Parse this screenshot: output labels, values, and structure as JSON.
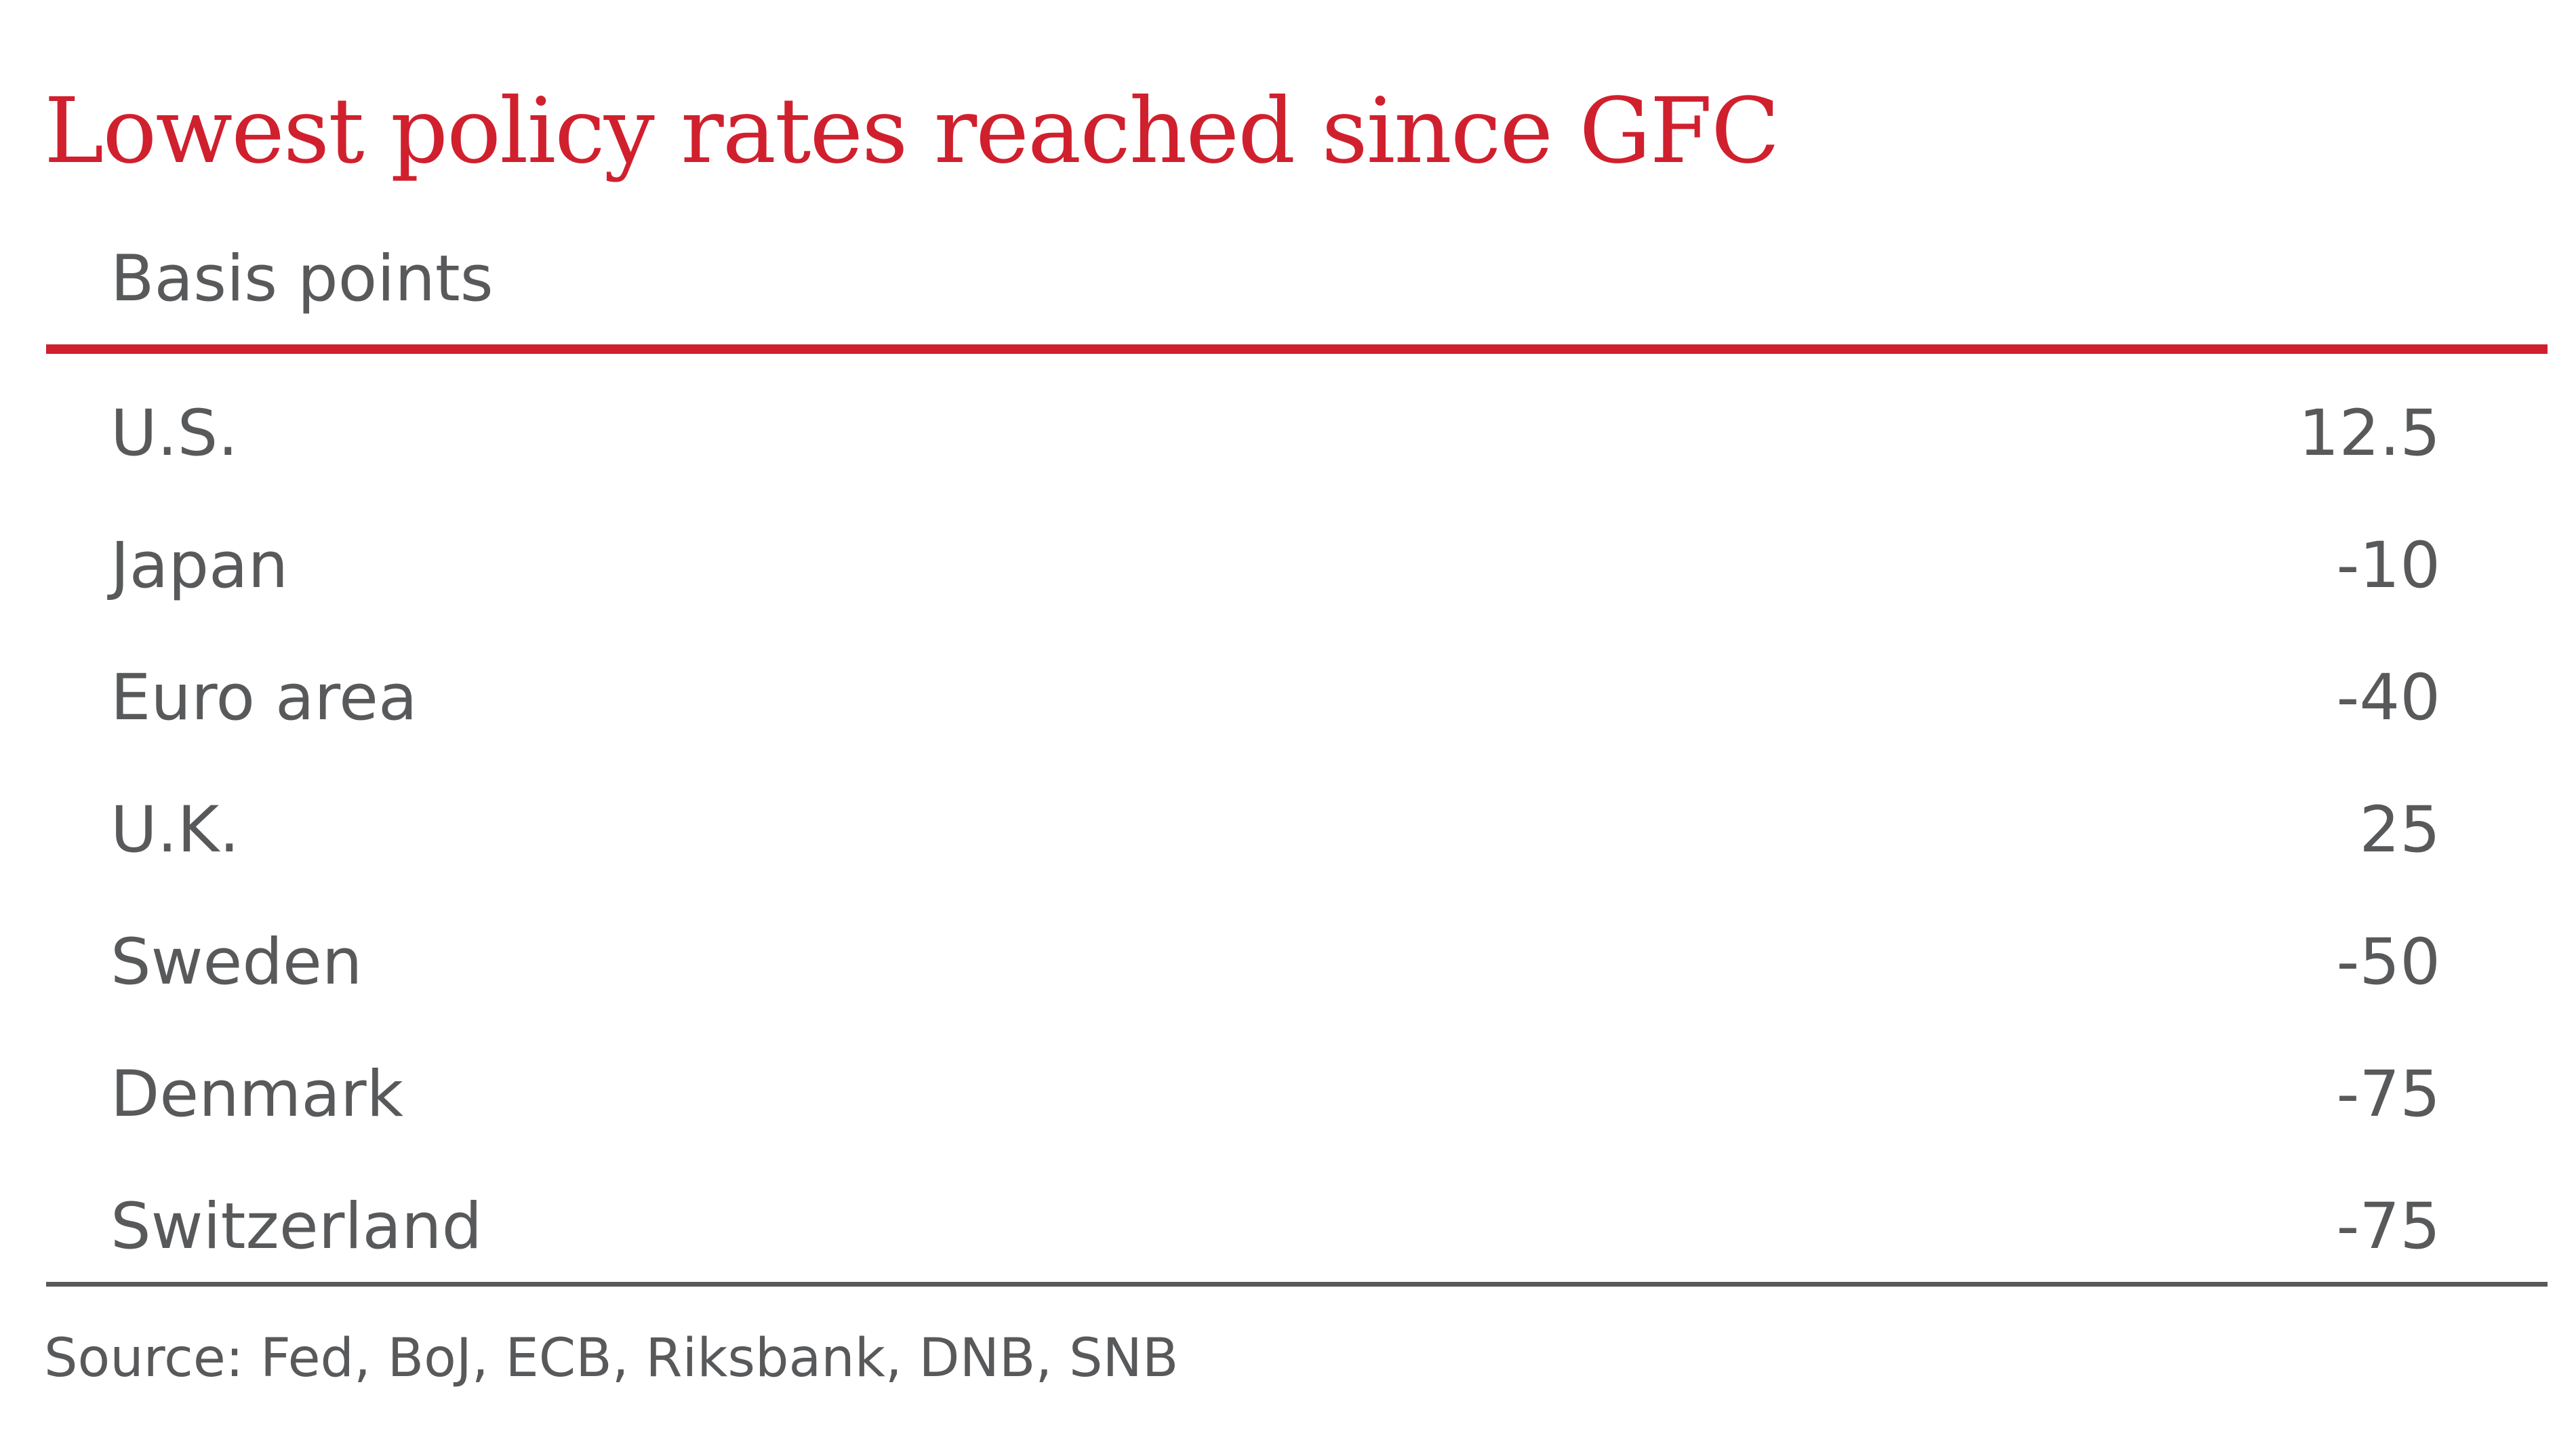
{
  "title": "Lowest policy rates reached since GFC",
  "unit_label": "Basis points",
  "source": "Source: Fed, BoJ, ECB, Riksbank, DNB, SNB",
  "colors": {
    "accent": "#d0202e",
    "text": "#58595b",
    "background": "#ffffff"
  },
  "chart_data": {
    "type": "table",
    "title": "Lowest policy rates reached since GFC",
    "ylabel": "Basis points",
    "columns": [
      "",
      ""
    ],
    "rows": [
      {
        "label": "U.S.",
        "value": "12.5"
      },
      {
        "label": "Japan",
        "value": "-10"
      },
      {
        "label": "Euro area",
        "value": "-40"
      },
      {
        "label": "U.K.",
        "value": "25"
      },
      {
        "label": "Sweden",
        "value": "-50"
      },
      {
        "label": "Denmark",
        "value": "-75"
      },
      {
        "label": "Switzerland",
        "value": "-75"
      }
    ]
  }
}
